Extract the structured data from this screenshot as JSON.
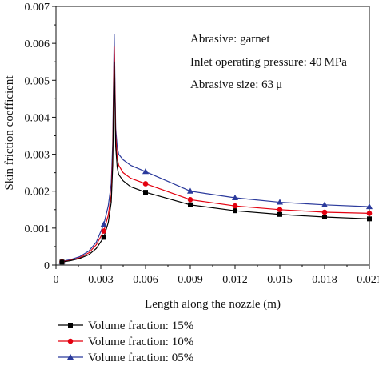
{
  "chart_data": {
    "type": "line",
    "xlabel": "Length along the nozzle (m)",
    "ylabel": "Skin friction coefficient",
    "xlim": [
      0,
      0.021
    ],
    "ylim": [
      0,
      0.007
    ],
    "xticks": [
      0,
      0.003,
      0.006,
      0.009,
      0.012,
      0.015,
      0.018,
      0.021
    ],
    "xtick_labels": [
      "0",
      "0.003",
      "0.006",
      "0.009",
      "0.012",
      "0.015",
      "0.018",
      "0.021"
    ],
    "yticks": [
      0,
      0.001,
      0.002,
      0.003,
      0.004,
      0.005,
      0.006,
      0.007
    ],
    "ytick_labels": [
      "0",
      "0.001",
      "0.002",
      "0.003",
      "0.004",
      "0.005",
      "0.006",
      "0.007"
    ],
    "grid": false,
    "legend_position": "bottom-left",
    "annotations": [
      "Abrasive: garnet",
      "Inlet operating pressure: 40 MPa",
      "Abrasive size: 63 μ"
    ],
    "series": [
      {
        "name": "Volume fraction: 15%",
        "color": "#000000",
        "marker": "square",
        "x": [
          0.0004,
          0.001,
          0.0016,
          0.0022,
          0.0027,
          0.0032,
          0.0035,
          0.0037,
          0.0038,
          0.0039,
          0.004,
          0.0041,
          0.0042,
          0.0045,
          0.005,
          0.006,
          0.009,
          0.012,
          0.015,
          0.018,
          0.021
        ],
        "y": [
          8e-05,
          0.00012,
          0.00018,
          0.00028,
          0.00045,
          0.00075,
          0.00115,
          0.0017,
          0.0027,
          0.0055,
          0.0032,
          0.00265,
          0.00245,
          0.00228,
          0.00212,
          0.00197,
          0.00163,
          0.00147,
          0.00137,
          0.0013,
          0.00125
        ],
        "marker_x": [
          0.0004,
          0.0032,
          0.006,
          0.009,
          0.012,
          0.015,
          0.018,
          0.021
        ],
        "marker_y": [
          8e-05,
          0.00075,
          0.00197,
          0.00163,
          0.00147,
          0.00137,
          0.0013,
          0.00125
        ]
      },
      {
        "name": "Volume fraction: 10%",
        "color": "#e3000f",
        "marker": "circle",
        "x": [
          0.0004,
          0.001,
          0.0016,
          0.0022,
          0.0027,
          0.0032,
          0.0035,
          0.0037,
          0.0038,
          0.0039,
          0.004,
          0.0041,
          0.0042,
          0.0045,
          0.005,
          0.006,
          0.009,
          0.012,
          0.015,
          0.018,
          0.021
        ],
        "y": [
          9e-05,
          0.00013,
          0.0002,
          0.00033,
          0.00055,
          0.00092,
          0.00135,
          0.0019,
          0.003,
          0.0059,
          0.0035,
          0.0029,
          0.0027,
          0.0025,
          0.00235,
          0.0022,
          0.00177,
          0.0016,
          0.0015,
          0.00143,
          0.0014
        ],
        "marker_x": [
          0.0004,
          0.0032,
          0.006,
          0.009,
          0.012,
          0.015,
          0.018,
          0.021
        ],
        "marker_y": [
          9e-05,
          0.00092,
          0.0022,
          0.00177,
          0.0016,
          0.0015,
          0.00143,
          0.0014
        ]
      },
      {
        "name": "Volume fraction: 05%",
        "color": "#2b3a9c",
        "marker": "triangle",
        "x": [
          0.0004,
          0.001,
          0.0016,
          0.0022,
          0.0027,
          0.0032,
          0.0035,
          0.0037,
          0.0038,
          0.0039,
          0.004,
          0.0041,
          0.0042,
          0.0045,
          0.005,
          0.006,
          0.009,
          0.012,
          0.015,
          0.018,
          0.021
        ],
        "y": [
          0.0001,
          0.00015,
          0.00023,
          0.00038,
          0.00062,
          0.0011,
          0.0016,
          0.0022,
          0.0033,
          0.00625,
          0.0037,
          0.0032,
          0.003,
          0.00285,
          0.0027,
          0.00253,
          0.002,
          0.00182,
          0.0017,
          0.00163,
          0.00158
        ],
        "marker_x": [
          0.0004,
          0.0032,
          0.006,
          0.009,
          0.012,
          0.015,
          0.018,
          0.021
        ],
        "marker_y": [
          0.0001,
          0.0011,
          0.00253,
          0.002,
          0.00182,
          0.0017,
          0.00163,
          0.00158
        ]
      }
    ]
  }
}
